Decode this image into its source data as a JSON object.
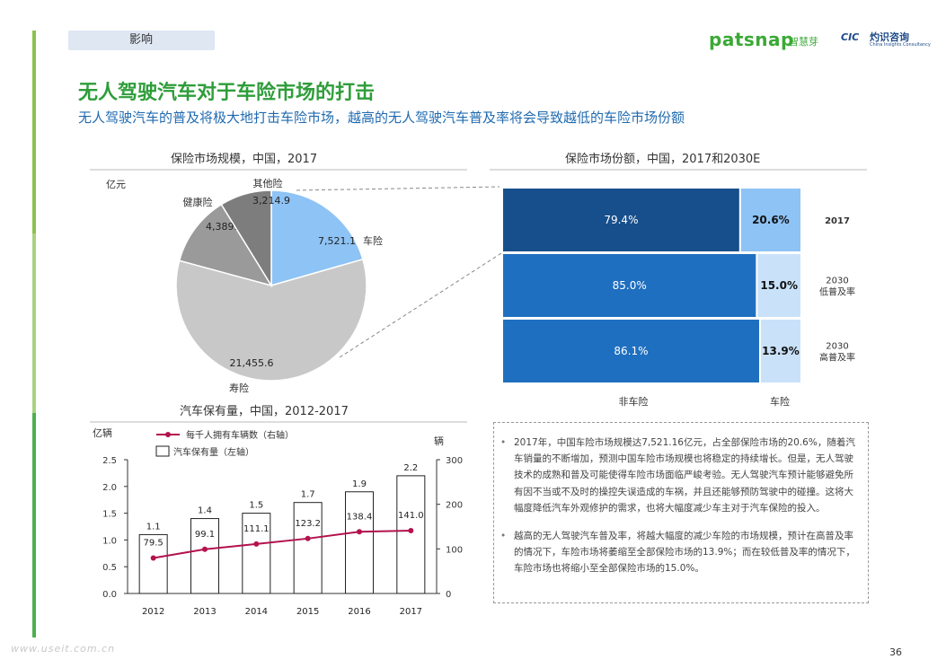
{
  "header": {
    "tag": "影响",
    "logo_brand": "patsnap",
    "logo_brand_cn": "智慧芽",
    "logo_cic": "CIC",
    "logo_cic_cn": "灼识咨询",
    "logo_cic_en": "China Insights Consultancy"
  },
  "title": "无人驾驶汽车对于车险市场的打击",
  "subtitle": "无人驾驶汽车的普及将极大地打击车险市场，越高的无人驾驶汽车普及率将会导致越低的车险市场份额",
  "colors": {
    "accent_green": "#2e9d3a",
    "accent_blue": "#1f6ab0",
    "pie_car": "#8ec3f5",
    "pie_other": "#7d7d7d",
    "pie_health": "#9a9a9a",
    "pie_life": "#c8c8c8",
    "stack_dark": "#174f8c",
    "stack_mid": "#1f6fc0",
    "stack_light": "#8ec3f5",
    "stack_lighter": "#c9e2fa",
    "line": "#b3124d"
  },
  "chart_data": [
    {
      "type": "pie",
      "title": "保险市场规模，中国，2017",
      "unit_label": "亿元",
      "slices": [
        {
          "name": "车险",
          "value": 7521.1,
          "label": "7,521.1"
        },
        {
          "name": "寿险",
          "value": 21455.6,
          "label": "21,455.6"
        },
        {
          "name": "健康险",
          "value": 4389.5,
          "label": "4,389.5"
        },
        {
          "name": "其他险",
          "value": 3214.9,
          "label": "3,214.9"
        }
      ]
    },
    {
      "type": "bar",
      "stacked": "horizontal-100%",
      "title": "保险市场份额，中国，2017和2030E",
      "categories": [
        "非车险",
        "车险"
      ],
      "rows": [
        {
          "label": "2017",
          "values": [
            79.4,
            20.6
          ],
          "labels": [
            "79.4%",
            "20.6%"
          ]
        },
        {
          "label": "2030 低普及率",
          "label_lines": [
            "2030",
            "低普及率"
          ],
          "values": [
            85.0,
            15.0
          ],
          "labels": [
            "85.0%",
            "15.0%"
          ]
        },
        {
          "label": "2030 高普及率",
          "label_lines": [
            "2030",
            "高普及率"
          ],
          "values": [
            86.1,
            13.9
          ],
          "labels": [
            "86.1%",
            "13.9%"
          ]
        }
      ]
    },
    {
      "type": "bar",
      "title": "汽车保有量，中国，2012-2017",
      "categories": [
        "2012",
        "2013",
        "2014",
        "2015",
        "2016",
        "2017"
      ],
      "ylabel": "亿辆",
      "ylabel_right": "辆",
      "ylim": [
        0,
        2.5
      ],
      "yticks": [
        0.0,
        0.5,
        1.0,
        1.5,
        2.0,
        2.5
      ],
      "ytick_labels": [
        "0.0",
        "0.5",
        "1.0",
        "1.5",
        "2.0",
        "2.5"
      ],
      "ylim_right": [
        0,
        300
      ],
      "yticks_right": [
        0,
        100,
        200,
        300
      ],
      "series": [
        {
          "name": "汽车保有量（左轴）",
          "kind": "bar",
          "axis": "left",
          "values": [
            1.1,
            1.4,
            1.5,
            1.7,
            1.9,
            2.2
          ],
          "labels": [
            "1.1",
            "1.4",
            "1.5",
            "1.7",
            "1.9",
            "2.2"
          ]
        },
        {
          "name": "每千人拥有车辆数（右轴）",
          "kind": "line",
          "axis": "right",
          "values": [
            79.5,
            99.1,
            111.1,
            123.2,
            138.4,
            141.0
          ],
          "labels": [
            "79.5",
            "99.1",
            "111.1",
            "123.2",
            "138.4",
            "141.0"
          ]
        }
      ]
    }
  ],
  "notes": [
    "2017年，中国车险市场规模达7,521.16亿元，占全部保险市场的20.6%，随着汽车销量的不断增加，预测中国车险市场规模也将稳定的持续增长。但是，无人驾驶技术的成熟和普及可能使得车险市场面临严峻考验。无人驾驶汽车预计能够避免所有因不当或不及时的操控失误造成的车祸，并且还能够预防驾驶中的碰撞。这将大幅度降低汽车外观修护的需求，也将大幅度减少车主对于汽车保险的投入。",
    "越高的无人驾驶汽车普及率，将越大幅度的减少车险的市场规模，预计在高普及率的情况下，车险市场将萎缩至全部保险市场的13.9%；而在较低普及率的情况下，车险市场也将缩小至全部保险市场的15.0%。"
  ],
  "footer": {
    "url": "www.useit.com.cn",
    "page": "36"
  }
}
